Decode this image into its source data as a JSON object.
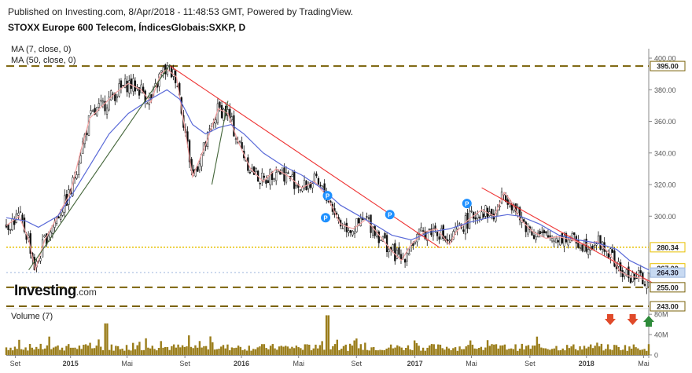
{
  "header": {
    "published": "Published on Investing.com, 8/Apr/2018 - 11:48:53 GMT, Powered by TradingView.",
    "title": "STOXX Europe 600 Telecom, ÍndicesGlobais:SXKP, D"
  },
  "indicators": {
    "ma_fast": "MA (7, close, 0)",
    "ma_slow": "MA (50, close, 0)"
  },
  "volume_label": "Volume (7)",
  "logo": {
    "main": "Investing",
    "suffix": ".com"
  },
  "colors": {
    "candle": "#111111",
    "ma_fast": "#f4a0a0",
    "ma_slow": "#5a6ad8",
    "resistance_line": "#ee3333",
    "support_line": "#44663a",
    "level_dark": "#7a6208",
    "level_yellow": "#e8c000",
    "volume": "#9a7d1a",
    "arrow_down": "#e04a2a",
    "arrow_up": "#2e8b3a",
    "marker": "#1e90ff"
  },
  "chart_data": {
    "type": "candlestick",
    "price_axis": {
      "ylim": [
        243,
        402
      ],
      "ticks": [
        "400.00",
        "380.00",
        "360.00",
        "340.00",
        "320.00",
        "300.00"
      ]
    },
    "volume_axis": {
      "ylim": [
        0,
        88
      ],
      "ticks": [
        "80M",
        "40M",
        "0"
      ]
    },
    "x_ticks": [
      "Set",
      "2015",
      "Mai",
      "Set",
      "2016",
      "Mai",
      "Set",
      "2017",
      "Mai",
      "Set",
      "2018",
      "Mai"
    ],
    "levels": [
      {
        "value": 395.0,
        "label": "395.00",
        "style": "dark-dashed"
      },
      {
        "value": 280.34,
        "label": "280.34",
        "style": "yellow-dotted"
      },
      {
        "value": 267.0,
        "label": "267.00",
        "style": "yellow-box"
      },
      {
        "value": 264.3,
        "label": "264.30",
        "style": "last-price"
      },
      {
        "value": 255.0,
        "label": "255.00",
        "style": "dark-dashed"
      },
      {
        "value": 243.0,
        "label": "243.00",
        "style": "dark-dashed"
      }
    ],
    "series": [
      {
        "name": "MA (7, close, 0)",
        "points": [
          [
            0,
            294
          ],
          [
            0.02,
            300
          ],
          [
            0.035,
            285
          ],
          [
            0.045,
            266
          ],
          [
            0.06,
            285
          ],
          [
            0.08,
            300
          ],
          [
            0.1,
            315
          ],
          [
            0.115,
            340
          ],
          [
            0.13,
            362
          ],
          [
            0.15,
            370
          ],
          [
            0.17,
            378
          ],
          [
            0.19,
            384
          ],
          [
            0.21,
            380
          ],
          [
            0.225,
            372
          ],
          [
            0.24,
            390
          ],
          [
            0.25,
            393
          ],
          [
            0.265,
            388
          ],
          [
            0.28,
            350
          ],
          [
            0.29,
            325
          ],
          [
            0.31,
            345
          ],
          [
            0.33,
            368
          ],
          [
            0.345,
            365
          ],
          [
            0.36,
            348
          ],
          [
            0.38,
            330
          ],
          [
            0.4,
            322
          ],
          [
            0.42,
            330
          ],
          [
            0.44,
            325
          ],
          [
            0.46,
            318
          ],
          [
            0.48,
            322
          ],
          [
            0.5,
            312
          ],
          [
            0.52,
            295
          ],
          [
            0.54,
            292
          ],
          [
            0.56,
            298
          ],
          [
            0.58,
            288
          ],
          [
            0.6,
            278
          ],
          [
            0.615,
            272
          ],
          [
            0.63,
            282
          ],
          [
            0.65,
            290
          ],
          [
            0.67,
            292
          ],
          [
            0.69,
            282
          ],
          [
            0.7,
            290
          ],
          [
            0.72,
            298
          ],
          [
            0.74,
            304
          ],
          [
            0.76,
            300
          ],
          [
            0.775,
            315
          ],
          [
            0.785,
            310
          ],
          [
            0.8,
            298
          ],
          [
            0.82,
            290
          ],
          [
            0.84,
            286
          ],
          [
            0.86,
            287
          ],
          [
            0.88,
            285
          ],
          [
            0.9,
            282
          ],
          [
            0.92,
            284
          ],
          [
            0.94,
            276
          ],
          [
            0.955,
            265
          ],
          [
            0.97,
            262
          ],
          [
            0.985,
            261
          ],
          [
            1,
            259
          ]
        ]
      },
      {
        "name": "MA (50, close, 0)",
        "points": [
          [
            0,
            299
          ],
          [
            0.03,
            297
          ],
          [
            0.05,
            293
          ],
          [
            0.08,
            300
          ],
          [
            0.1,
            312
          ],
          [
            0.13,
            332
          ],
          [
            0.16,
            352
          ],
          [
            0.19,
            365
          ],
          [
            0.22,
            373
          ],
          [
            0.25,
            380
          ],
          [
            0.27,
            374
          ],
          [
            0.29,
            358
          ],
          [
            0.31,
            352
          ],
          [
            0.33,
            356
          ],
          [
            0.35,
            358
          ],
          [
            0.37,
            352
          ],
          [
            0.4,
            340
          ],
          [
            0.43,
            332
          ],
          [
            0.46,
            326
          ],
          [
            0.49,
            318
          ],
          [
            0.52,
            307
          ],
          [
            0.55,
            300
          ],
          [
            0.58,
            293
          ],
          [
            0.6,
            288
          ],
          [
            0.63,
            285
          ],
          [
            0.66,
            290
          ],
          [
            0.69,
            292
          ],
          [
            0.72,
            296
          ],
          [
            0.75,
            299
          ],
          [
            0.78,
            301
          ],
          [
            0.8,
            300
          ],
          [
            0.83,
            295
          ],
          [
            0.86,
            288
          ],
          [
            0.89,
            285
          ],
          [
            0.92,
            283
          ],
          [
            0.95,
            279
          ],
          [
            0.97,
            272
          ],
          [
            1,
            266
          ]
        ]
      }
    ],
    "trendlines": [
      {
        "name": "support-1",
        "from": [
          0.035,
          266
        ],
        "to": [
          0.255,
          396
        ]
      },
      {
        "name": "resistance-1",
        "from": [
          0.255,
          395
        ],
        "to": [
          0.675,
          280
        ]
      },
      {
        "name": "resistance-2",
        "from": [
          0.74,
          318
        ],
        "to": [
          1.005,
          258
        ]
      },
      {
        "name": "resistance-minor",
        "from": [
          0.345,
          373
        ],
        "to": [
          0.32,
          320
        ]
      }
    ],
    "annotations": [
      {
        "type": "pivot",
        "label": "P",
        "x": 0.5,
        "y": 313
      },
      {
        "type": "pivot",
        "label": "P",
        "x": 0.497,
        "y": 299
      },
      {
        "type": "pivot",
        "label": "P",
        "x": 0.597,
        "y": 301
      },
      {
        "type": "pivot",
        "label": "P",
        "x": 0.717,
        "y": 308
      },
      {
        "type": "arrow-down",
        "x": 0.94
      },
      {
        "type": "arrow-down",
        "x": 0.975
      },
      {
        "type": "arrow-up",
        "x": 1.0
      }
    ]
  }
}
